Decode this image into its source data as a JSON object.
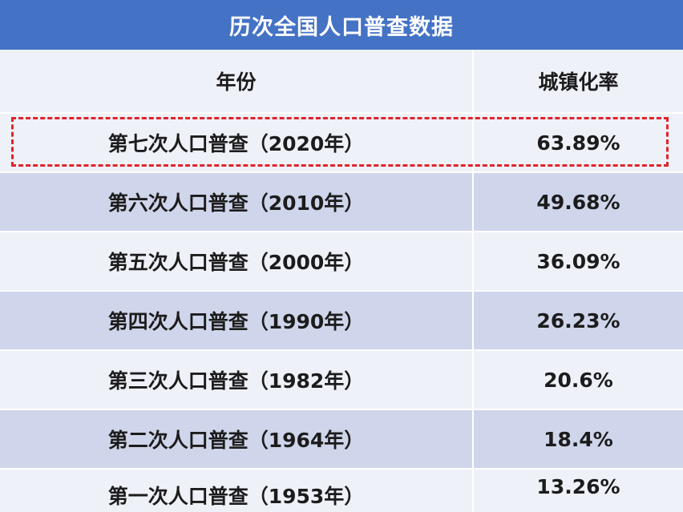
{
  "title": "历次全国人口普查数据",
  "header": {
    "year": "年份",
    "rate": "城镇化率"
  },
  "rows": [
    {
      "year": "第七次人口普查（2020年）",
      "rate": "63.89%"
    },
    {
      "year": "第六次人口普查（2010年）",
      "rate": "49.68%"
    },
    {
      "year": "第五次人口普查（2000年）",
      "rate": "36.09%"
    },
    {
      "year": "第四次人口普查（1990年）",
      "rate": "26.23%"
    },
    {
      "year": "第三次人口普查（1982年）",
      "rate": "20.6%"
    },
    {
      "year": "第二次人口普查（1964年）",
      "rate": "18.4%"
    },
    {
      "year": "第一次人口普查（1953年）",
      "rate": "13.26%"
    }
  ],
  "highlighted_row": 0,
  "colors": {
    "title_background": "#4472c4",
    "row_light": "#eff1f8",
    "row_dark": "#cfd5ea",
    "highlight_border": "#e0242b"
  }
}
